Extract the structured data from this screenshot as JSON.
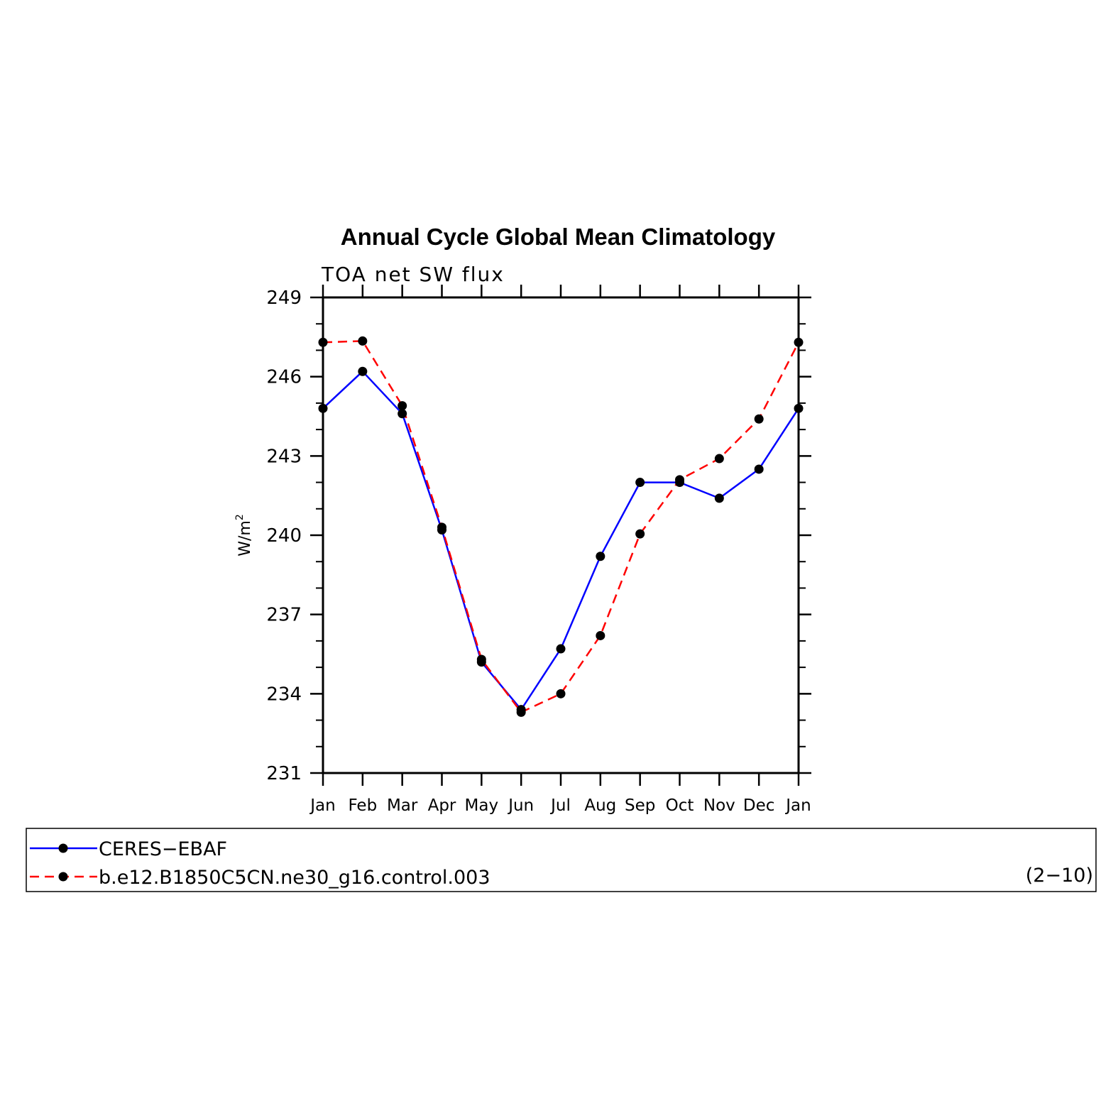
{
  "chart_data": {
    "type": "line",
    "title": "Annual Cycle Global Mean Climatology",
    "subtitle": "TOA net SW flux",
    "ylabel": "W/m",
    "ylabel_superscript": "2",
    "ylim": [
      231,
      249
    ],
    "yticks": [
      231,
      234,
      237,
      240,
      243,
      246,
      249
    ],
    "categories": [
      "Jan",
      "Feb",
      "Mar",
      "Apr",
      "May",
      "Jun",
      "Jul",
      "Aug",
      "Sep",
      "Oct",
      "Nov",
      "Dec",
      "Jan"
    ],
    "series": [
      {
        "name": "CERES−EBAF",
        "color": "#0000ff",
        "dash": "solid",
        "values": [
          244.8,
          246.2,
          244.6,
          240.2,
          235.2,
          233.4,
          235.7,
          239.2,
          242.0,
          242.0,
          241.4,
          242.5,
          244.8
        ]
      },
      {
        "name": "b.e12.B1850C5CN.ne30_g16.control.003",
        "color": "#ff0000",
        "dash": "dashed",
        "values": [
          247.3,
          247.35,
          244.9,
          240.3,
          235.3,
          233.3,
          234.0,
          236.2,
          240.05,
          242.1,
          242.9,
          244.4,
          247.3
        ]
      }
    ],
    "legend_note": "(2−10)",
    "legend_position": "bottom"
  }
}
